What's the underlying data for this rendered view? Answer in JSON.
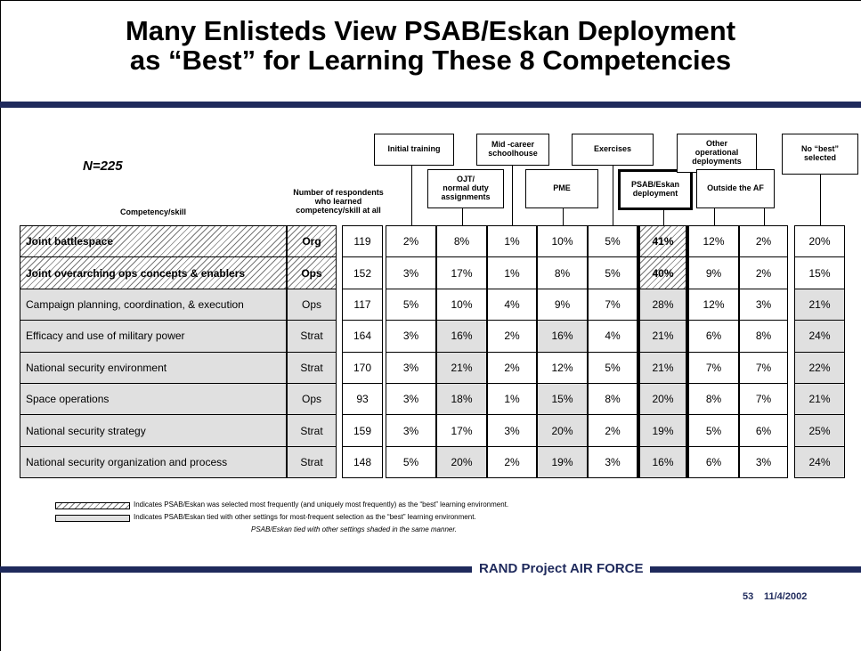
{
  "title": "Many Enlisteds View PSAB/Eskan Deployment\nas “Best” for Learning These 8 Competencies",
  "n": "N=225",
  "table": {
    "headers": {
      "competency": "Competency/skill",
      "respondents": "Number of respondents\nwho learned\ncompetency/skill at all",
      "settings": [
        "Initial training",
        "OJT/\nnormal duty\nassignments",
        "Mid -career\nschoolhouse",
        "PME",
        "Exercises",
        "PSAB/Eskan\ndeployment",
        "Other\noperational\ndeployments",
        "Outside the AF",
        "No “best”\nselected"
      ]
    },
    "rows": [
      [
        "Joint battlespace",
        "Org",
        119,
        "2%",
        "8%",
        "1%",
        "10%",
        "5%",
        "41%",
        "12%",
        "2%",
        "20%"
      ],
      [
        "Joint overarching ops concepts & enablers",
        "Ops",
        152,
        "3%",
        "17%",
        "1%",
        "8%",
        "5%",
        "40%",
        "9%",
        "2%",
        "15%"
      ],
      [
        "Campaign planning, coordination, & execution",
        "Ops",
        117,
        "5%",
        "10%",
        "4%",
        "9%",
        "7%",
        "28%",
        "12%",
        "3%",
        "21%"
      ],
      [
        "Efficacy and use of military power",
        "Strat",
        164,
        "3%",
        "16%",
        "2%",
        "16%",
        "4%",
        "21%",
        "6%",
        "8%",
        "24%"
      ],
      [
        "National security environment",
        "Strat",
        170,
        "3%",
        "21%",
        "2%",
        "12%",
        "5%",
        "21%",
        "7%",
        "7%",
        "22%"
      ],
      [
        "Space operations",
        "Ops",
        93,
        "3%",
        "18%",
        "1%",
        "15%",
        "8%",
        "20%",
        "8%",
        "7%",
        "21%"
      ],
      [
        "National security strategy",
        "Strat",
        159,
        "3%",
        "17%",
        "3%",
        "20%",
        "2%",
        "19%",
        "5%",
        "6%",
        "25%"
      ],
      [
        "National security organization and process",
        "Strat",
        148,
        "5%",
        "20%",
        "2%",
        "19%",
        "3%",
        "16%",
        "6%",
        "3%",
        "24%"
      ]
    ]
  },
  "legend": [
    "Indicates PSAB/Eskan was selected most frequently (and uniquely most frequently) as the “best” learning environment.",
    "Indicates PSAB/Eskan tied with other settings for most-frequent selection as the “best” learning environment.",
    "PSAB/Eskan tied with other settings shaded in the same manner."
  ],
  "footer": {
    "org": "RAND Project AIR FORCE",
    "page": "53",
    "date": "11/4/2002"
  }
}
